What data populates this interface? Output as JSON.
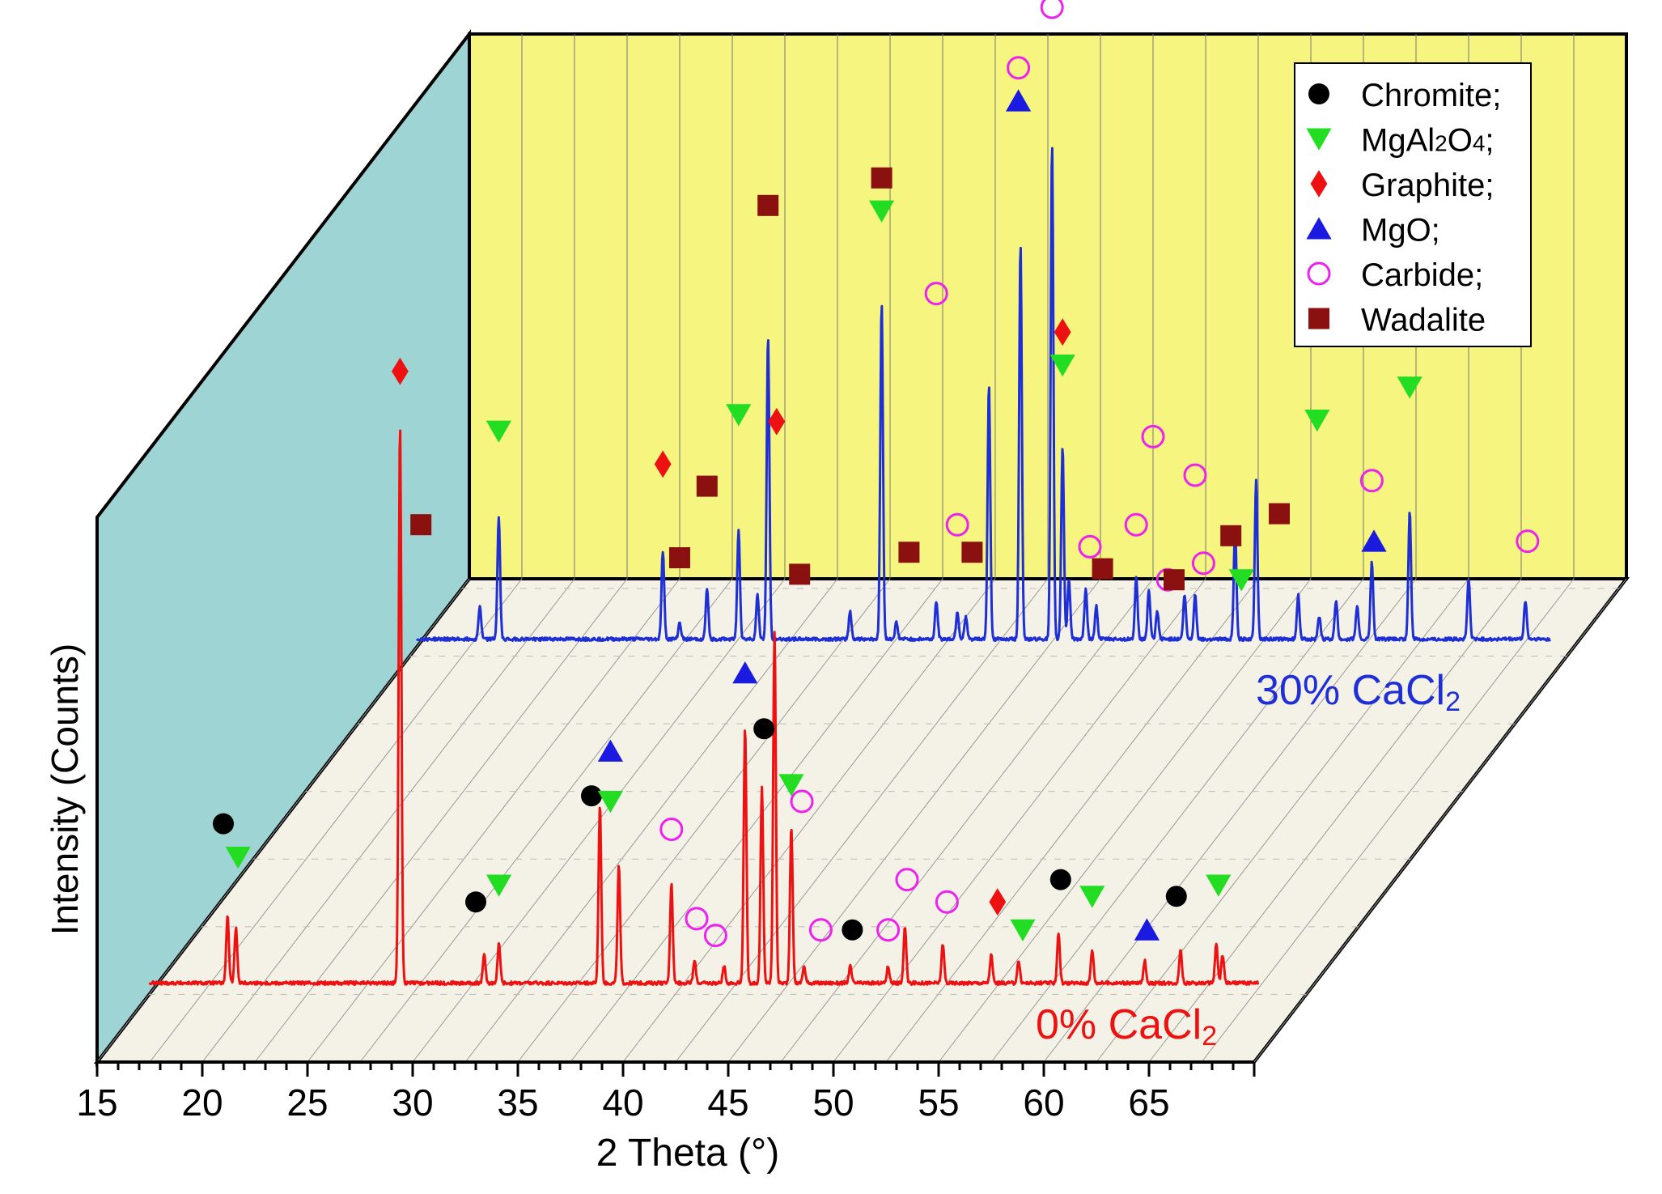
{
  "chart_data": {
    "type": "line",
    "xlabel": "2 Theta (°)",
    "ylabel": "Intensity (Counts)",
    "xlim": [
      15,
      70
    ],
    "xticks": [
      15,
      20,
      25,
      30,
      35,
      40,
      45,
      50,
      55,
      60,
      65
    ],
    "colors": {
      "background_wall": "#f5f57f",
      "side_wall": "#9fd4d4",
      "floor": "#f4f1e6",
      "front_series": "#ee1111",
      "back_series": "#1f2fd6",
      "chromite": "#000000",
      "mgal2o4": "#22dd22",
      "graphite": "#ee1111",
      "mgo": "#1a1ae0",
      "carbide": "#ee22ee",
      "wadalite": "#8b1010"
    },
    "legend": {
      "position": "top-right",
      "items": [
        {
          "label": "Chromite;",
          "marker": "circle",
          "color": "#000000"
        },
        {
          "label": "MgAl2O4;",
          "marker": "triangle-down",
          "color": "#22dd22"
        },
        {
          "label": "Graphite;",
          "marker": "diamond",
          "color": "#ee1111"
        },
        {
          "label": "MgO;",
          "marker": "triangle-up",
          "color": "#1a1ae0"
        },
        {
          "label": "Carbide;",
          "marker": "circle-open",
          "color": "#ee22ee"
        },
        {
          "label": "Wadalite",
          "marker": "square",
          "color": "#8b1010"
        }
      ]
    },
    "series": [
      {
        "name": "0% CaCl2",
        "color": "#ee1111",
        "x_range": [
          17.5,
          70.2
        ],
        "peaks": [
          {
            "x": 21.2,
            "y": 0.12
          },
          {
            "x": 21.6,
            "y": 0.1
          },
          {
            "x": 29.4,
            "y": 1.0
          },
          {
            "x": 33.4,
            "y": 0.05
          },
          {
            "x": 34.1,
            "y": 0.07
          },
          {
            "x": 38.9,
            "y": 0.32
          },
          {
            "x": 39.8,
            "y": 0.21
          },
          {
            "x": 42.3,
            "y": 0.18
          },
          {
            "x": 43.4,
            "y": 0.04
          },
          {
            "x": 44.8,
            "y": 0.03
          },
          {
            "x": 45.8,
            "y": 0.46
          },
          {
            "x": 46.6,
            "y": 0.35
          },
          {
            "x": 47.2,
            "y": 0.63
          },
          {
            "x": 48.0,
            "y": 0.28
          },
          {
            "x": 48.6,
            "y": 0.03
          },
          {
            "x": 50.8,
            "y": 0.03
          },
          {
            "x": 52.6,
            "y": 0.03
          },
          {
            "x": 53.4,
            "y": 0.1
          },
          {
            "x": 55.2,
            "y": 0.07
          },
          {
            "x": 57.5,
            "y": 0.05
          },
          {
            "x": 58.8,
            "y": 0.04
          },
          {
            "x": 60.7,
            "y": 0.09
          },
          {
            "x": 62.3,
            "y": 0.06
          },
          {
            "x": 64.8,
            "y": 0.04
          },
          {
            "x": 66.5,
            "y": 0.06
          },
          {
            "x": 68.2,
            "y": 0.07
          },
          {
            "x": 68.5,
            "y": 0.05
          }
        ],
        "markers": [
          {
            "x": 21.0,
            "y": 0.26,
            "phase": "chromite"
          },
          {
            "x": 21.7,
            "y": 0.2,
            "phase": "mgal2o4"
          },
          {
            "x": 29.4,
            "y": 1.07,
            "phase": "graphite"
          },
          {
            "x": 33.0,
            "y": 0.12,
            "phase": "chromite"
          },
          {
            "x": 34.1,
            "y": 0.15,
            "phase": "mgal2o4"
          },
          {
            "x": 38.5,
            "y": 0.31,
            "phase": "chromite"
          },
          {
            "x": 39.4,
            "y": 0.39,
            "phase": "mgo"
          },
          {
            "x": 39.4,
            "y": 0.3,
            "phase": "mgal2o4"
          },
          {
            "x": 42.3,
            "y": 0.25,
            "phase": "carbide"
          },
          {
            "x": 43.5,
            "y": 0.09,
            "phase": "carbide"
          },
          {
            "x": 44.4,
            "y": 0.06,
            "phase": "carbide"
          },
          {
            "x": 45.8,
            "y": 0.53,
            "phase": "mgo"
          },
          {
            "x": 46.7,
            "y": 0.43,
            "phase": "chromite"
          },
          {
            "x": 47.3,
            "y": 0.98,
            "phase": "graphite"
          },
          {
            "x": 48.0,
            "y": 0.33,
            "phase": "mgal2o4"
          },
          {
            "x": 48.5,
            "y": 0.3,
            "phase": "carbide"
          },
          {
            "x": 49.4,
            "y": 0.07,
            "phase": "carbide"
          },
          {
            "x": 50.9,
            "y": 0.07,
            "phase": "chromite"
          },
          {
            "x": 52.6,
            "y": 0.07,
            "phase": "carbide"
          },
          {
            "x": 53.5,
            "y": 0.16,
            "phase": "carbide"
          },
          {
            "x": 55.4,
            "y": 0.12,
            "phase": "carbide"
          },
          {
            "x": 57.8,
            "y": 0.12,
            "phase": "graphite"
          },
          {
            "x": 59.0,
            "y": 0.07,
            "phase": "mgal2o4"
          },
          {
            "x": 60.8,
            "y": 0.16,
            "phase": "chromite"
          },
          {
            "x": 62.3,
            "y": 0.13,
            "phase": "mgal2o4"
          },
          {
            "x": 64.9,
            "y": 0.07,
            "phase": "mgo"
          },
          {
            "x": 66.3,
            "y": 0.13,
            "phase": "chromite"
          },
          {
            "x": 68.3,
            "y": 0.15,
            "phase": "mgal2o4"
          }
        ]
      },
      {
        "name": "30% CaCl2",
        "color": "#1f2fd6",
        "x_range": [
          15.0,
          68.9
        ],
        "peaks": [
          {
            "x": 18.0,
            "y": 0.06
          },
          {
            "x": 18.9,
            "y": 0.22
          },
          {
            "x": 26.7,
            "y": 0.16
          },
          {
            "x": 27.5,
            "y": 0.03
          },
          {
            "x": 28.8,
            "y": 0.09
          },
          {
            "x": 30.3,
            "y": 0.2
          },
          {
            "x": 31.2,
            "y": 0.08
          },
          {
            "x": 31.7,
            "y": 0.55
          },
          {
            "x": 35.6,
            "y": 0.05
          },
          {
            "x": 37.1,
            "y": 0.61
          },
          {
            "x": 37.8,
            "y": 0.03
          },
          {
            "x": 39.7,
            "y": 0.07
          },
          {
            "x": 40.7,
            "y": 0.05
          },
          {
            "x": 41.1,
            "y": 0.04
          },
          {
            "x": 42.2,
            "y": 0.46
          },
          {
            "x": 43.7,
            "y": 0.72
          },
          {
            "x": 45.2,
            "y": 0.9
          },
          {
            "x": 45.7,
            "y": 0.35
          },
          {
            "x": 46.0,
            "y": 0.11
          },
          {
            "x": 46.8,
            "y": 0.09
          },
          {
            "x": 47.3,
            "y": 0.06
          },
          {
            "x": 49.2,
            "y": 0.11
          },
          {
            "x": 49.8,
            "y": 0.09
          },
          {
            "x": 50.2,
            "y": 0.05
          },
          {
            "x": 51.5,
            "y": 0.08
          },
          {
            "x": 52.0,
            "y": 0.08
          },
          {
            "x": 53.9,
            "y": 0.2
          },
          {
            "x": 54.9,
            "y": 0.29
          },
          {
            "x": 56.9,
            "y": 0.08
          },
          {
            "x": 57.9,
            "y": 0.04
          },
          {
            "x": 58.7,
            "y": 0.07
          },
          {
            "x": 59.7,
            "y": 0.06
          },
          {
            "x": 60.4,
            "y": 0.14
          },
          {
            "x": 62.2,
            "y": 0.23
          },
          {
            "x": 65.0,
            "y": 0.11
          },
          {
            "x": 67.7,
            "y": 0.07
          }
        ],
        "markers": [
          {
            "x": 15.2,
            "y": 0.16,
            "phase": "wadalite"
          },
          {
            "x": 18.9,
            "y": 0.33,
            "phase": "mgal2o4"
          },
          {
            "x": 26.7,
            "y": 0.27,
            "phase": "graphite"
          },
          {
            "x": 27.5,
            "y": 0.1,
            "phase": "wadalite"
          },
          {
            "x": 28.8,
            "y": 0.23,
            "phase": "wadalite"
          },
          {
            "x": 30.3,
            "y": 0.36,
            "phase": "mgal2o4"
          },
          {
            "x": 31.7,
            "y": 0.74,
            "phase": "wadalite"
          },
          {
            "x": 33.2,
            "y": 0.07,
            "phase": "wadalite"
          },
          {
            "x": 37.1,
            "y": 0.79,
            "phase": "wadalite"
          },
          {
            "x": 37.1,
            "y": 0.73,
            "phase": "mgal2o4"
          },
          {
            "x": 38.4,
            "y": 0.11,
            "phase": "wadalite"
          },
          {
            "x": 39.7,
            "y": 0.58,
            "phase": "carbide"
          },
          {
            "x": 40.7,
            "y": 0.16,
            "phase": "carbide"
          },
          {
            "x": 41.4,
            "y": 0.11,
            "phase": "wadalite"
          },
          {
            "x": 43.6,
            "y": 0.99,
            "phase": "carbide"
          },
          {
            "x": 43.6,
            "y": 0.93,
            "phase": "mgo"
          },
          {
            "x": 45.2,
            "y": 1.1,
            "phase": "carbide"
          },
          {
            "x": 45.7,
            "y": 0.51,
            "phase": "graphite"
          },
          {
            "x": 45.7,
            "y": 0.45,
            "phase": "mgal2o4"
          },
          {
            "x": 47.0,
            "y": 0.12,
            "phase": "carbide"
          },
          {
            "x": 47.6,
            "y": 0.08,
            "phase": "wadalite"
          },
          {
            "x": 49.2,
            "y": 0.16,
            "phase": "carbide"
          },
          {
            "x": 50.0,
            "y": 0.32,
            "phase": "carbide"
          },
          {
            "x": 50.7,
            "y": 0.06,
            "phase": "carbide"
          },
          {
            "x": 51.0,
            "y": 0.06,
            "phase": "wadalite"
          },
          {
            "x": 52.0,
            "y": 0.25,
            "phase": "carbide"
          },
          {
            "x": 52.4,
            "y": 0.09,
            "phase": "carbide"
          },
          {
            "x": 53.7,
            "y": 0.14,
            "phase": "wadalite"
          },
          {
            "x": 54.2,
            "y": 0.06,
            "phase": "mgal2o4"
          },
          {
            "x": 56.0,
            "y": 0.18,
            "phase": "wadalite"
          },
          {
            "x": 57.8,
            "y": 0.35,
            "phase": "mgal2o4"
          },
          {
            "x": 60.4,
            "y": 0.24,
            "phase": "carbide"
          },
          {
            "x": 60.5,
            "y": 0.13,
            "phase": "mgo"
          },
          {
            "x": 62.2,
            "y": 0.41,
            "phase": "mgal2o4"
          },
          {
            "x": 67.8,
            "y": 0.13,
            "phase": "carbide"
          }
        ]
      }
    ]
  }
}
